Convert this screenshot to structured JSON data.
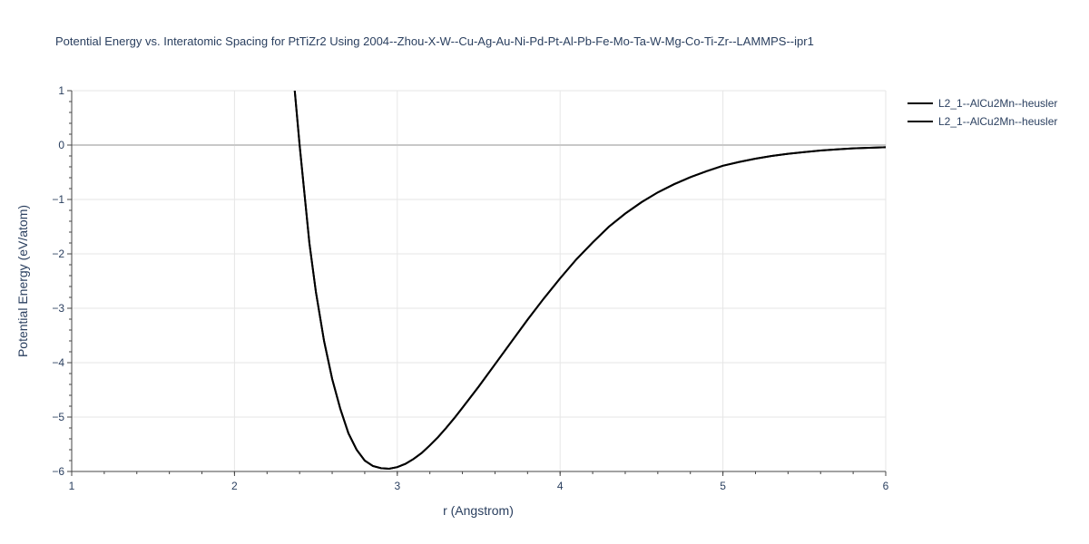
{
  "chart_data": {
    "type": "line",
    "title": "Potential Energy vs. Interatomic Spacing for PtTiZr2 Using 2004--Zhou-X-W--Cu-Ag-Au-Ni-Pd-Pt-Al-Pb-Fe-Mo-Ta-W-Mg-Co-Ti-Zr--LAMMPS--ipr1",
    "xlabel": "r (Angstrom)",
    "ylabel": "Potential Energy (eV/atom)",
    "xlim": [
      1,
      6
    ],
    "ylim": [
      -6,
      1
    ],
    "x_ticks": [
      1,
      2,
      3,
      4,
      5,
      6
    ],
    "x_tick_labels": [
      "1",
      "2",
      "3",
      "4",
      "5",
      "6"
    ],
    "y_ticks": [
      1,
      0,
      -1,
      -2,
      -3,
      -4,
      -5,
      -6
    ],
    "y_tick_labels": [
      "1",
      "0",
      "−1",
      "−2",
      "−3",
      "−4",
      "−5",
      "−6"
    ],
    "grid": true,
    "legend_position": "top-right",
    "colors": {
      "line": "#000000",
      "grid": "#e6e6e6",
      "zeroline": "#c8c8c8",
      "text": "#2a3f5f"
    },
    "series": [
      {
        "name": "L2_1--AlCu2Mn--heusler",
        "x": [
          2.37,
          2.4,
          2.43,
          2.46,
          2.5,
          2.55,
          2.6,
          2.65,
          2.7,
          2.75,
          2.8,
          2.85,
          2.9,
          2.95,
          3.0,
          3.05,
          3.1,
          3.15,
          3.2,
          3.25,
          3.3,
          3.35,
          3.4,
          3.5,
          3.6,
          3.7,
          3.8,
          3.9,
          4.0,
          4.1,
          4.2,
          4.3,
          4.4,
          4.5,
          4.6,
          4.7,
          4.8,
          4.9,
          5.0,
          5.1,
          5.2,
          5.3,
          5.4,
          5.5,
          5.6,
          5.7,
          5.8,
          5.9,
          6.0
        ],
        "y": [
          1.0,
          0.0,
          -0.9,
          -1.8,
          -2.7,
          -3.6,
          -4.3,
          -4.85,
          -5.3,
          -5.6,
          -5.8,
          -5.9,
          -5.94,
          -5.95,
          -5.92,
          -5.86,
          -5.77,
          -5.66,
          -5.52,
          -5.37,
          -5.2,
          -5.02,
          -4.83,
          -4.44,
          -4.03,
          -3.62,
          -3.21,
          -2.82,
          -2.45,
          -2.1,
          -1.79,
          -1.5,
          -1.26,
          -1.05,
          -0.87,
          -0.72,
          -0.59,
          -0.48,
          -0.38,
          -0.31,
          -0.25,
          -0.2,
          -0.16,
          -0.13,
          -0.1,
          -0.08,
          -0.06,
          -0.05,
          -0.04
        ]
      },
      {
        "name": "L2_1--AlCu2Mn--heusler",
        "x": [
          2.37,
          2.4,
          2.43,
          2.46,
          2.5,
          2.55,
          2.6,
          2.65,
          2.7,
          2.75,
          2.8,
          2.85,
          2.9,
          2.95,
          3.0,
          3.05,
          3.1,
          3.15,
          3.2,
          3.25,
          3.3,
          3.35,
          3.4,
          3.5,
          3.6,
          3.7,
          3.8,
          3.9,
          4.0,
          4.1,
          4.2,
          4.3,
          4.4,
          4.5,
          4.6,
          4.7,
          4.8,
          4.9,
          5.0,
          5.1,
          5.2,
          5.3,
          5.4,
          5.5,
          5.6,
          5.7,
          5.8,
          5.9,
          6.0
        ],
        "y": [
          1.0,
          0.0,
          -0.9,
          -1.8,
          -2.7,
          -3.6,
          -4.3,
          -4.85,
          -5.3,
          -5.6,
          -5.8,
          -5.9,
          -5.94,
          -5.95,
          -5.92,
          -5.86,
          -5.77,
          -5.66,
          -5.52,
          -5.37,
          -5.2,
          -5.02,
          -4.83,
          -4.44,
          -4.03,
          -3.62,
          -3.21,
          -2.82,
          -2.45,
          -2.1,
          -1.79,
          -1.5,
          -1.26,
          -1.05,
          -0.87,
          -0.72,
          -0.59,
          -0.48,
          -0.38,
          -0.31,
          -0.25,
          -0.2,
          -0.16,
          -0.13,
          -0.1,
          -0.08,
          -0.06,
          -0.05,
          -0.04
        ]
      }
    ]
  }
}
